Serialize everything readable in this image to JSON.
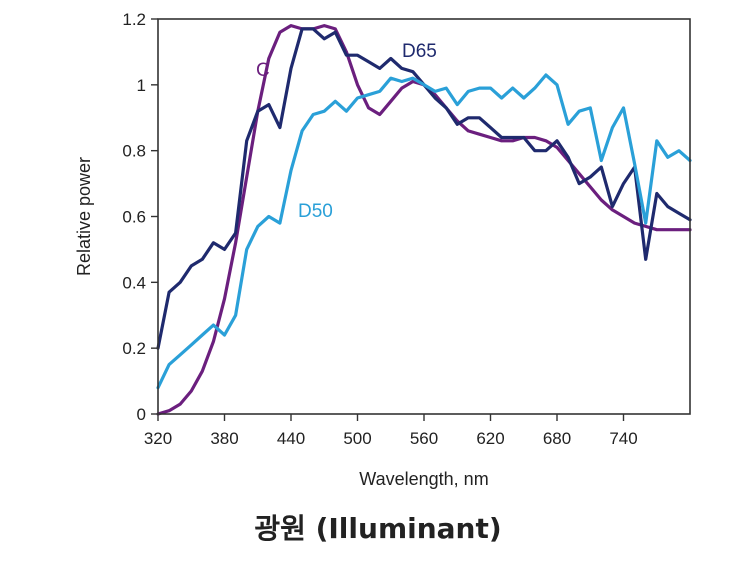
{
  "caption": "광원 (Illuminant)",
  "chart_data": {
    "type": "line",
    "xlabel": "Wavelength, nm",
    "ylabel": "Relative power",
    "xlim": [
      320,
      800
    ],
    "ylim": [
      0,
      1.2
    ],
    "xticks": [
      320,
      380,
      440,
      500,
      560,
      620,
      680,
      740
    ],
    "yticks": [
      0,
      0.2,
      0.4,
      0.6,
      0.8,
      1,
      1.2
    ],
    "xtick_labels": [
      "320",
      "380",
      "440",
      "500",
      "560",
      "620",
      "680",
      "740"
    ],
    "ytick_labels": [
      "0",
      "0.2",
      "0.4",
      "0.6",
      "0.8",
      "1",
      "1.2"
    ],
    "grid": false,
    "series": [
      {
        "name": "C",
        "color": "#6b1f7e",
        "x": [
          320,
          330,
          340,
          350,
          360,
          370,
          380,
          390,
          400,
          410,
          420,
          430,
          440,
          450,
          460,
          470,
          480,
          490,
          500,
          510,
          520,
          530,
          540,
          550,
          560,
          570,
          580,
          590,
          600,
          610,
          620,
          630,
          640,
          650,
          660,
          670,
          680,
          690,
          700,
          710,
          720,
          730,
          740,
          750,
          760,
          770,
          780,
          790,
          800
        ],
        "y": [
          0.0,
          0.01,
          0.03,
          0.07,
          0.13,
          0.22,
          0.35,
          0.52,
          0.72,
          0.92,
          1.08,
          1.16,
          1.18,
          1.17,
          1.17,
          1.18,
          1.17,
          1.1,
          1.0,
          0.93,
          0.91,
          0.95,
          0.99,
          1.01,
          1.0,
          0.97,
          0.93,
          0.89,
          0.86,
          0.85,
          0.84,
          0.83,
          0.83,
          0.84,
          0.84,
          0.83,
          0.81,
          0.77,
          0.73,
          0.69,
          0.65,
          0.62,
          0.6,
          0.58,
          0.57,
          0.56,
          0.56,
          0.56,
          0.56
        ]
      },
      {
        "name": "D65",
        "color": "#1f2a6e",
        "x": [
          320,
          330,
          340,
          350,
          360,
          370,
          380,
          390,
          400,
          410,
          420,
          430,
          440,
          450,
          460,
          470,
          480,
          490,
          500,
          510,
          520,
          530,
          540,
          550,
          560,
          570,
          580,
          590,
          600,
          610,
          620,
          630,
          640,
          650,
          660,
          670,
          680,
          690,
          700,
          710,
          720,
          730,
          740,
          750,
          760,
          770,
          780,
          790,
          800
        ],
        "y": [
          0.2,
          0.37,
          0.4,
          0.45,
          0.47,
          0.52,
          0.5,
          0.55,
          0.83,
          0.92,
          0.94,
          0.87,
          1.05,
          1.17,
          1.17,
          1.14,
          1.16,
          1.09,
          1.09,
          1.07,
          1.05,
          1.08,
          1.05,
          1.04,
          1.0,
          0.96,
          0.93,
          0.88,
          0.9,
          0.9,
          0.87,
          0.84,
          0.84,
          0.84,
          0.8,
          0.8,
          0.83,
          0.78,
          0.7,
          0.72,
          0.75,
          0.63,
          0.7,
          0.75,
          0.47,
          0.67,
          0.63,
          0.61,
          0.59
        ]
      },
      {
        "name": "D50",
        "color": "#2aa0d8",
        "x": [
          320,
          330,
          340,
          350,
          360,
          370,
          380,
          390,
          400,
          410,
          420,
          430,
          440,
          450,
          460,
          470,
          480,
          490,
          500,
          510,
          520,
          530,
          540,
          550,
          560,
          570,
          580,
          590,
          600,
          610,
          620,
          630,
          640,
          650,
          660,
          670,
          680,
          690,
          700,
          710,
          720,
          730,
          740,
          750,
          760,
          770,
          780,
          790,
          800
        ],
        "y": [
          0.08,
          0.15,
          0.18,
          0.21,
          0.24,
          0.27,
          0.24,
          0.3,
          0.5,
          0.57,
          0.6,
          0.58,
          0.74,
          0.86,
          0.91,
          0.92,
          0.95,
          0.92,
          0.96,
          0.97,
          0.98,
          1.02,
          1.01,
          1.02,
          1.0,
          0.98,
          0.99,
          0.94,
          0.98,
          0.99,
          0.99,
          0.96,
          0.99,
          0.96,
          0.99,
          1.03,
          1.0,
          0.88,
          0.92,
          0.93,
          0.77,
          0.87,
          0.93,
          0.76,
          0.58,
          0.83,
          0.78,
          0.8,
          0.77
        ]
      }
    ]
  }
}
